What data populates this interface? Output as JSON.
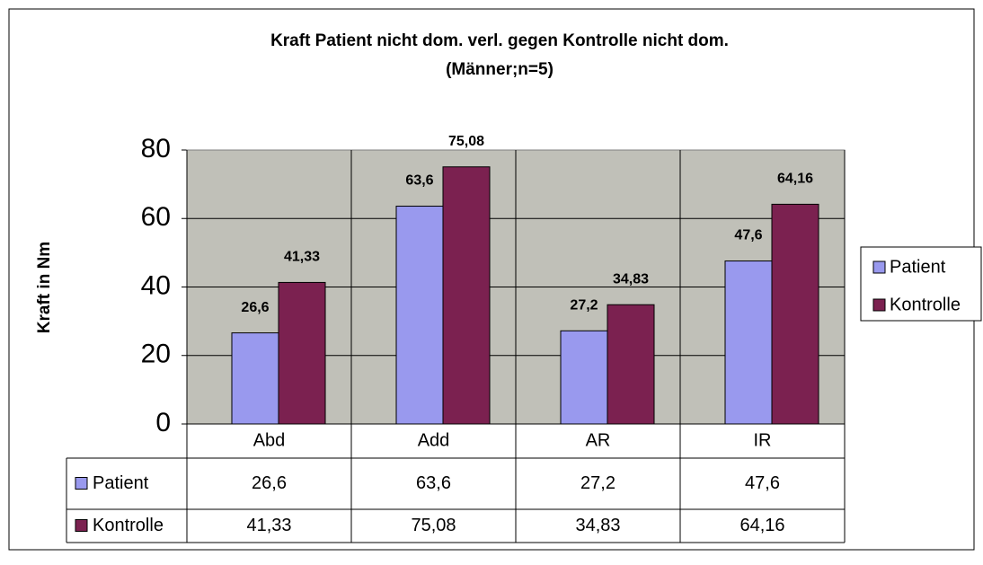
{
  "chart_data": {
    "type": "bar",
    "title": "Kraft Patient nicht dom. verl. gegen Kontrolle nicht dom.",
    "subtitle": "(Männer;n=5)",
    "y_label": "Kraft in Nm",
    "categories": [
      "Abd",
      "Add",
      "AR",
      "IR"
    ],
    "series": [
      {
        "name": "Patient",
        "color": "#9999ee",
        "values": [
          26.6,
          63.6,
          27.2,
          47.6
        ],
        "value_labels": [
          "26,6",
          "63,6",
          "27,2",
          "47,6"
        ]
      },
      {
        "name": "Kontrolle",
        "color": "#7b2150",
        "values": [
          41.33,
          75.08,
          34.83,
          64.16
        ],
        "value_labels": [
          "41,33",
          "75,08",
          "34,83",
          "64,16"
        ]
      }
    ],
    "ylim": [
      0,
      80
    ],
    "yticks": [
      0,
      20,
      40,
      60,
      80
    ],
    "grid": true,
    "legend": "right"
  }
}
